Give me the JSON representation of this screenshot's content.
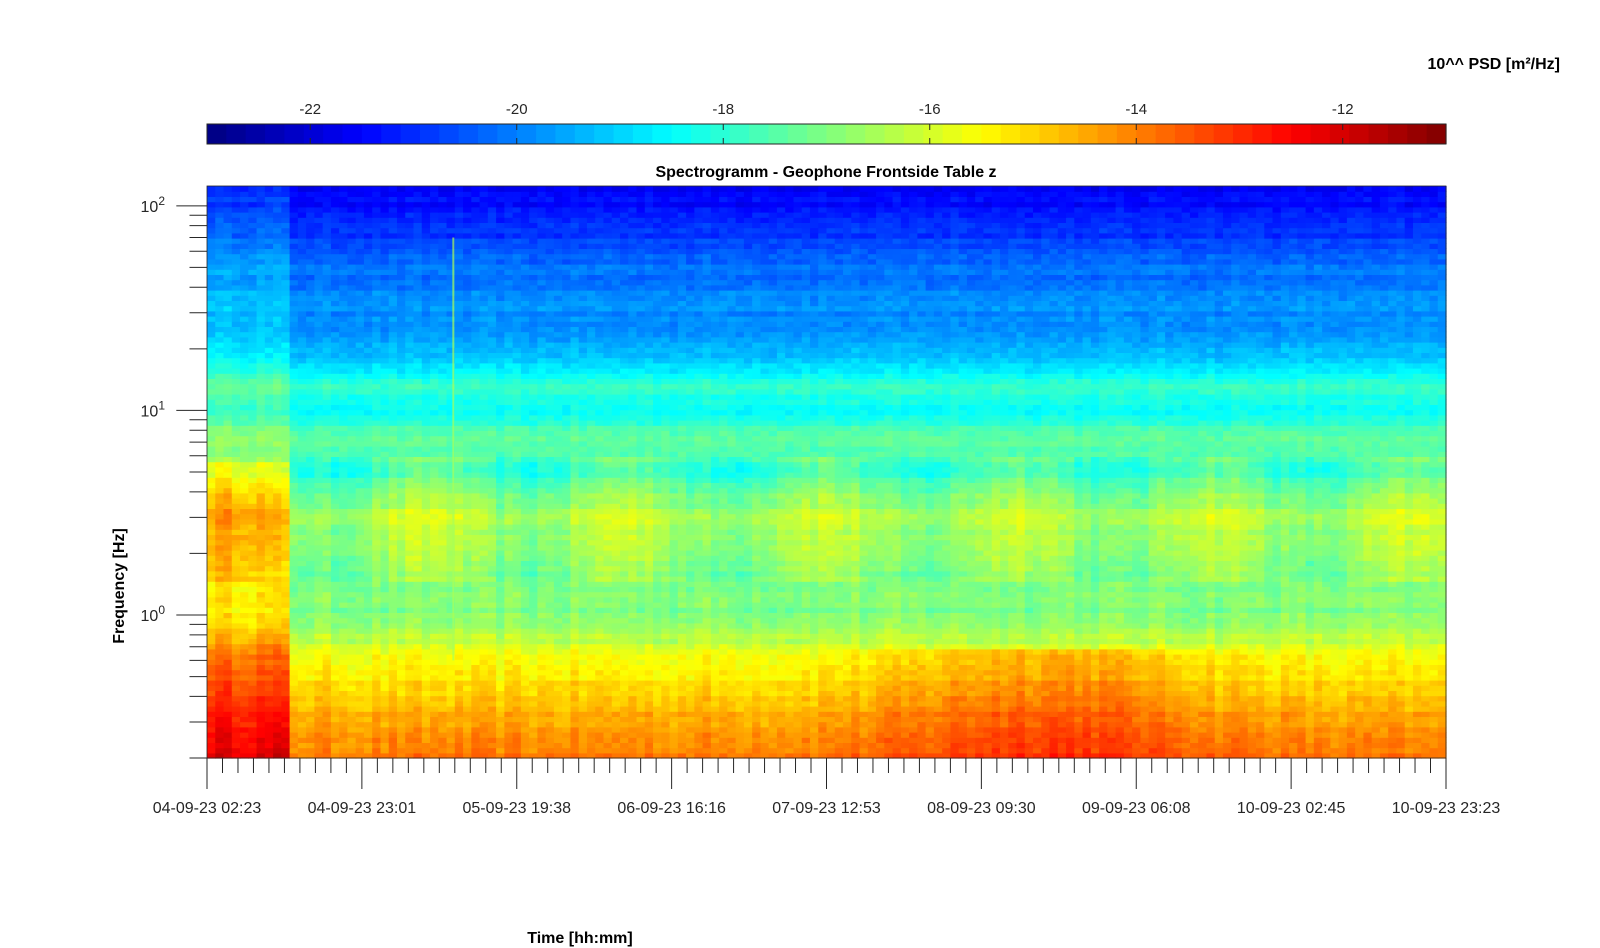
{
  "chart_data": {
    "type": "heatmap",
    "title": "Spectrogramm - Geophone Frontside Table z",
    "xlabel": "Time [hh:mm]",
    "ylabel": "Frequency [Hz]",
    "colorbar_label": "10^^ PSD [m²/Hz]",
    "colormap": "jet",
    "colorbar": {
      "range": [
        -23.0,
        -11.0
      ],
      "ticks": [
        -22,
        -20,
        -18,
        -16,
        -14,
        -12
      ],
      "tick_labels": [
        "-22",
        "-20",
        "-18",
        "-16",
        "-14",
        "-12"
      ],
      "location": "top"
    },
    "x_tick_labels": [
      "04-09-23 02:23",
      "04-09-23 23:01",
      "05-09-23 19:38",
      "06-09-23 16:16",
      "07-09-23 12:53",
      "08-09-23 09:30",
      "09-09-23 06:08",
      "10-09-23 02:45",
      "10-09-23 23:23"
    ],
    "y_scale": "log",
    "y_range_hz": [
      0.2,
      125
    ],
    "y_ticks": [
      {
        "value": 1,
        "base": "10",
        "exp": "0"
      },
      {
        "value": 10,
        "base": "10",
        "exp": "1"
      },
      {
        "value": 100,
        "base": "10",
        "exp": "2"
      }
    ],
    "psd_profile_by_frequency": [
      {
        "hz": 0.2,
        "log_psd": -13.8
      },
      {
        "hz": 0.35,
        "log_psd": -14.6
      },
      {
        "hz": 0.6,
        "log_psd": -15.6
      },
      {
        "hz": 1.0,
        "log_psd": -17.0
      },
      {
        "hz": 2.0,
        "log_psd": -16.8
      },
      {
        "hz": 3.0,
        "log_psd": -16.3
      },
      {
        "hz": 5.0,
        "log_psd": -17.7
      },
      {
        "hz": 7.5,
        "log_psd": -17.3
      },
      {
        "hz": 10,
        "log_psd": -18.6
      },
      {
        "hz": 13,
        "log_psd": -17.9
      },
      {
        "hz": 20,
        "log_psd": -19.5
      },
      {
        "hz": 50,
        "log_psd": -20.2
      },
      {
        "hz": 100,
        "log_psd": -21.4
      },
      {
        "hz": 125,
        "log_psd": -21.6
      }
    ]
  }
}
